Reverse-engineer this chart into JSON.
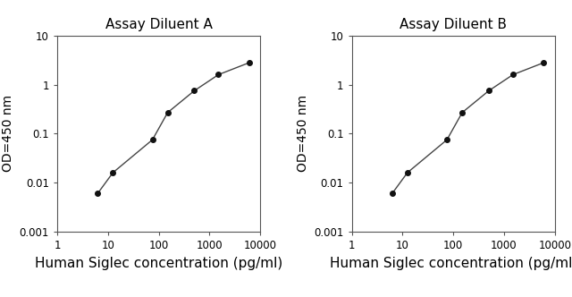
{
  "chart_A": {
    "title": "Assay Diluent A",
    "x": [
      6.25,
      12.5,
      75,
      150,
      500,
      1500,
      6000
    ],
    "y": [
      0.006,
      0.016,
      0.075,
      0.27,
      0.75,
      1.6,
      2.8
    ]
  },
  "chart_B": {
    "title": "Assay Diluent B",
    "x": [
      6.25,
      12.5,
      75,
      150,
      500,
      1500,
      6000
    ],
    "y": [
      0.006,
      0.016,
      0.075,
      0.27,
      0.75,
      1.6,
      2.8
    ]
  },
  "xlabel": "Human Siglec concentration (pg/ml)",
  "ylabel": "OD=450 nm",
  "xlim": [
    1,
    10000
  ],
  "ylim": [
    0.001,
    10
  ],
  "xticks": [
    1,
    10,
    100,
    1000,
    10000
  ],
  "yticks": [
    0.001,
    0.01,
    0.1,
    1,
    10
  ],
  "line_color": "#444444",
  "marker": "o",
  "marker_size": 4,
  "marker_facecolor": "#111111",
  "bg_color": "#ffffff",
  "axes_bg_color": "#ffffff",
  "title_fontsize": 11,
  "label_fontsize": 10,
  "tick_fontsize": 8.5,
  "xlabel_fontsize": 11
}
